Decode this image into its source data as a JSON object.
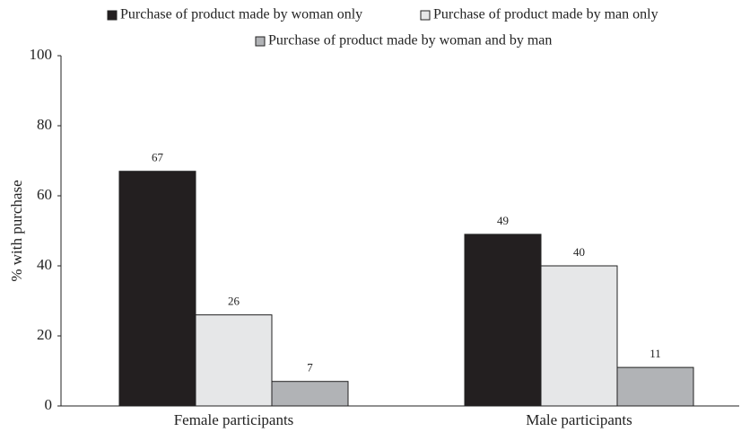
{
  "chart_data": {
    "type": "bar",
    "y_label": "% with purchase",
    "categories": [
      "Female participants",
      "Male participants"
    ],
    "series": [
      {
        "name": "Purchase of product made by woman only",
        "color": "#231f20",
        "values": [
          67,
          49
        ]
      },
      {
        "name": "Purchase of product made by man only",
        "color": "#e6e7e8",
        "values": [
          26,
          40
        ]
      },
      {
        "name": "Purchase of product made by woman and by man",
        "color": "#b1b3b6",
        "values": [
          7,
          11
        ]
      }
    ],
    "ylim": [
      0,
      100
    ],
    "yticks": [
      0,
      20,
      40,
      60,
      80,
      100
    ],
    "grid": false,
    "legend": "top"
  }
}
